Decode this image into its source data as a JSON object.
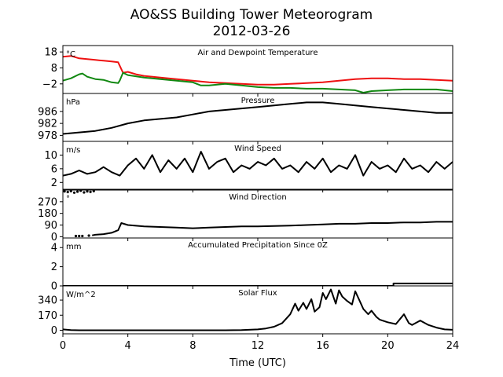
{
  "title": "AO&SS Building Tower Meteorogram",
  "subtitle": "2012-03-26",
  "colors": {
    "temperature": "#ee1111",
    "dewpoint": "#118811",
    "default": "#000000"
  },
  "chart_data": {
    "type": "line",
    "title": "AO&SS Building Tower Meteorogram",
    "subtitle": "2012-03-26",
    "xlabel": "Time (UTC)",
    "xlim": [
      0,
      24
    ],
    "xticks": [
      0,
      4,
      8,
      12,
      16,
      20,
      24
    ],
    "xticklabels": [
      "0",
      "4",
      "8",
      "12",
      "16",
      "20",
      "24"
    ],
    "panels": [
      {
        "id": "temp",
        "title": "Air and Dewpoint Temperature",
        "unit": "°C",
        "ylim": [
          -8,
          22
        ],
        "yticks": [
          18,
          8,
          -2
        ],
        "yticklabels": [
          "18",
          "8",
          "−2"
        ],
        "series": [
          {
            "key": "temperature",
            "x": [
              0,
              0.5,
              1,
              1.5,
              2,
              2.5,
              3,
              3.4,
              3.7,
              4,
              4.5,
              5,
              6,
              7,
              8,
              9,
              10,
              11,
              12,
              13,
              14,
              15,
              16,
              17,
              18,
              19,
              20,
              21,
              22,
              23,
              24
            ],
            "y": [
              15,
              15.5,
              14,
              13.5,
              13,
              12.5,
              12,
              11.5,
              5,
              5.5,
              4,
              3,
              2,
              1,
              0,
              -1,
              -1.5,
              -2,
              -2.5,
              -2.5,
              -2,
              -1.5,
              -1,
              0,
              1,
              1.5,
              1.5,
              1,
              1,
              0.5,
              0
            ]
          },
          {
            "key": "dewpoint",
            "x": [
              0,
              0.5,
              1,
              1.2,
              1.5,
              2,
              2.5,
              3,
              3.4,
              3.5,
              3.7,
              4,
              5,
              6,
              7,
              8,
              8.5,
              9,
              10,
              11,
              12,
              13,
              14,
              15,
              16,
              17,
              18,
              18.5,
              19,
              20,
              21,
              22,
              23,
              24
            ],
            "y": [
              0,
              1.5,
              4,
              4.5,
              2.5,
              1,
              0.5,
              -1,
              -1.5,
              0,
              5,
              3.5,
              2,
              1,
              0,
              -1,
              -3,
              -3,
              -2,
              -3,
              -4,
              -4.5,
              -4.5,
              -5,
              -5,
              -5.5,
              -6,
              -7.5,
              -6.5,
              -6,
              -5.5,
              -5.5,
              -5.5,
              -6.5
            ]
          }
        ]
      },
      {
        "id": "pressure",
        "title": "Pressure",
        "unit": "hPa",
        "ylim": [
          976,
          992
        ],
        "yticks": [
          986,
          982,
          978
        ],
        "yticklabels": [
          "986",
          "982",
          "978"
        ],
        "series": [
          {
            "key": "default",
            "x": [
              0,
              1,
              2,
              3,
              4,
              5,
              6,
              7,
              8,
              9,
              10,
              11,
              12,
              13,
              14,
              15,
              16,
              17,
              18,
              19,
              20,
              21,
              22,
              23,
              24
            ],
            "y": [
              978.5,
              979,
              979.5,
              980.5,
              982,
              983,
              983.5,
              984,
              985,
              986,
              986.5,
              987,
              987.5,
              988,
              988.5,
              989,
              989,
              988.5,
              988,
              987.5,
              987,
              986.5,
              986,
              985.5,
              985.5
            ]
          }
        ]
      },
      {
        "id": "wind_speed",
        "title": "Wind Speed",
        "unit": "m/s",
        "ylim": [
          0,
          14
        ],
        "yticks": [
          10,
          6,
          2
        ],
        "yticklabels": [
          "10",
          "6",
          "2"
        ],
        "series": [
          {
            "key": "default",
            "x": [
              0,
              0.5,
              1,
              1.5,
              2,
              2.5,
              3,
              3.5,
              4,
              4.5,
              5,
              5.5,
              6,
              6.5,
              7,
              7.5,
              8,
              8.5,
              9,
              9.5,
              10,
              10.5,
              11,
              11.5,
              12,
              12.5,
              13,
              13.5,
              14,
              14.5,
              15,
              15.5,
              16,
              16.5,
              17,
              17.5,
              18,
              18.5,
              19,
              19.5,
              20,
              20.5,
              21,
              21.5,
              22,
              22.5,
              23,
              23.5,
              24
            ],
            "y": [
              4,
              4.5,
              5.5,
              4.5,
              5,
              6.5,
              5,
              4,
              7,
              9,
              6,
              10,
              5,
              8.5,
              6,
              9,
              5,
              11,
              6,
              8,
              9,
              5,
              7,
              6,
              8,
              7,
              9,
              6,
              7,
              5,
              8,
              6,
              9,
              5,
              7,
              6,
              10,
              4,
              8,
              6,
              7,
              5,
              9,
              6,
              7,
              5,
              8,
              6,
              8
            ]
          }
        ]
      },
      {
        "id": "wind_direction",
        "title": "Wind Direction",
        "unit": "°",
        "ylim": [
          -10,
          360
        ],
        "yticks": [
          270,
          180,
          90,
          0
        ],
        "yticklabels": [
          "270",
          "180",
          "90",
          "0"
        ],
        "series": [
          {
            "key": "default",
            "x": [
              1.8,
              2,
              2.5,
              3,
              3.4,
              3.6,
              4,
              5,
              6,
              7,
              8,
              9,
              10,
              11,
              12,
              13,
              14,
              15,
              16,
              17,
              18,
              19,
              20,
              21,
              22,
              23,
              24
            ],
            "y": [
              10,
              15,
              20,
              30,
              50,
              105,
              90,
              80,
              75,
              70,
              65,
              70,
              75,
              80,
              80,
              82,
              85,
              90,
              95,
              100,
              100,
              105,
              105,
              110,
              110,
              115,
              115
            ]
          }
        ],
        "scatter": [
          {
            "x": [
              0.1,
              0.3,
              0.5,
              0.7,
              0.9,
              1.1,
              1.3,
              1.5,
              1.7,
              1.9
            ],
            "y": [
              350,
              345,
              352,
              340,
              348,
              355,
              342,
              350,
              346,
              352
            ]
          },
          {
            "x": [
              0.8,
              1.0,
              1.2,
              1.6
            ],
            "y": [
              5,
              5,
              5,
              8
            ]
          }
        ]
      },
      {
        "id": "precip",
        "title": "Accumulated Precipitation Since 0Z",
        "unit": "mm",
        "ylim": [
          0,
          5
        ],
        "yticks": [
          4,
          2,
          0
        ],
        "yticklabels": [
          "4",
          "2",
          "0"
        ],
        "series": [
          {
            "key": "default",
            "x": [
              0,
              20.35,
              20.35,
              24
            ],
            "y": [
              0,
              0,
              0.25,
              0.25
            ]
          }
        ]
      },
      {
        "id": "solar",
        "title": "Solar Flux",
        "unit": "W/m^2",
        "ylim": [
          -40,
          500
        ],
        "yticks": [
          340,
          170,
          0
        ],
        "yticklabels": [
          "340",
          "170",
          "0"
        ],
        "series": [
          {
            "key": "default",
            "x": [
              0,
              0.5,
              1,
              2,
              4,
              6,
              8,
              10,
              11,
              12,
              12.5,
              13,
              13.5,
              14,
              14.3,
              14.5,
              14.8,
              15,
              15.3,
              15.5,
              15.8,
              16,
              16.2,
              16.5,
              16.8,
              17,
              17.2,
              17.5,
              17.8,
              18,
              18.3,
              18.5,
              18.8,
              19,
              19.3,
              19.5,
              20,
              20.5,
              21,
              21.3,
              21.5,
              22,
              22.5,
              23,
              23.5,
              24
            ],
            "y": [
              10,
              2,
              0,
              0,
              0,
              0,
              0,
              0,
              2,
              10,
              20,
              40,
              80,
              180,
              300,
              220,
              310,
              240,
              350,
              210,
              260,
              420,
              350,
              460,
              300,
              450,
              380,
              330,
              290,
              440,
              320,
              240,
              180,
              220,
              150,
              120,
              90,
              70,
              180,
              80,
              60,
              110,
              60,
              30,
              10,
              5
            ]
          }
        ]
      }
    ]
  }
}
